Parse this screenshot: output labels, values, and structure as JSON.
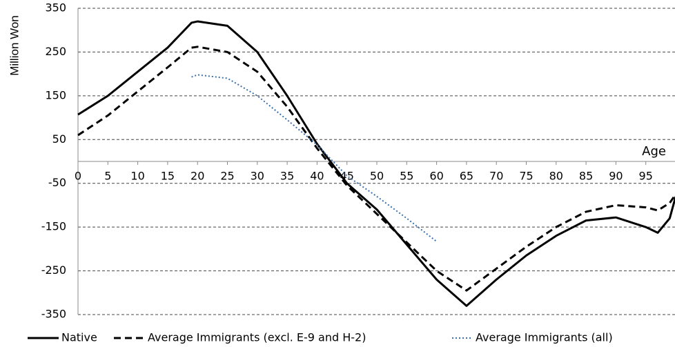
{
  "chart_data": {
    "type": "line",
    "y_label": "Million Won",
    "x_label": "Age",
    "x": [
      0,
      5,
      10,
      15,
      19,
      20,
      25,
      30,
      35,
      40,
      45,
      50,
      55,
      60,
      65,
      70,
      75,
      80,
      85,
      90,
      95,
      97,
      99,
      100
    ],
    "series": [
      {
        "name": "Native",
        "color": "#000000",
        "style": "solid",
        "values": [
          107,
          150,
          205,
          260,
          317,
          320,
          310,
          250,
          150,
          40,
          -50,
          -110,
          -190,
          -270,
          -330,
          -270,
          -215,
          -170,
          -135,
          -128,
          -150,
          -163,
          -130,
          -80
        ]
      },
      {
        "name": "Average Immigrants (excl. E-9 and H-2)",
        "color": "#000000",
        "style": "dashed",
        "values": [
          60,
          105,
          160,
          215,
          260,
          262,
          250,
          205,
          125,
          30,
          -55,
          -120,
          -185,
          -250,
          -295,
          -245,
          -195,
          -150,
          -115,
          -100,
          -105,
          -112,
          -95,
          -75
        ]
      },
      {
        "name": "Average Immigrants (all)",
        "color": "#3b6fa8",
        "style": "dotted",
        "values": [
          null,
          null,
          null,
          null,
          193,
          198,
          190,
          150,
          95,
          38,
          -33,
          -80,
          -130,
          -183,
          null,
          null,
          null,
          null,
          null,
          null,
          null,
          null,
          null,
          null
        ]
      }
    ],
    "xlim": [
      0,
      100
    ],
    "xticks": [
      0,
      5,
      10,
      15,
      20,
      25,
      30,
      35,
      40,
      45,
      50,
      55,
      60,
      65,
      70,
      75,
      80,
      85,
      90,
      95
    ],
    "ylim": [
      -350,
      350
    ],
    "yticks": [
      -350,
      -250,
      -150,
      -50,
      50,
      150,
      250,
      350
    ],
    "grid": true
  }
}
